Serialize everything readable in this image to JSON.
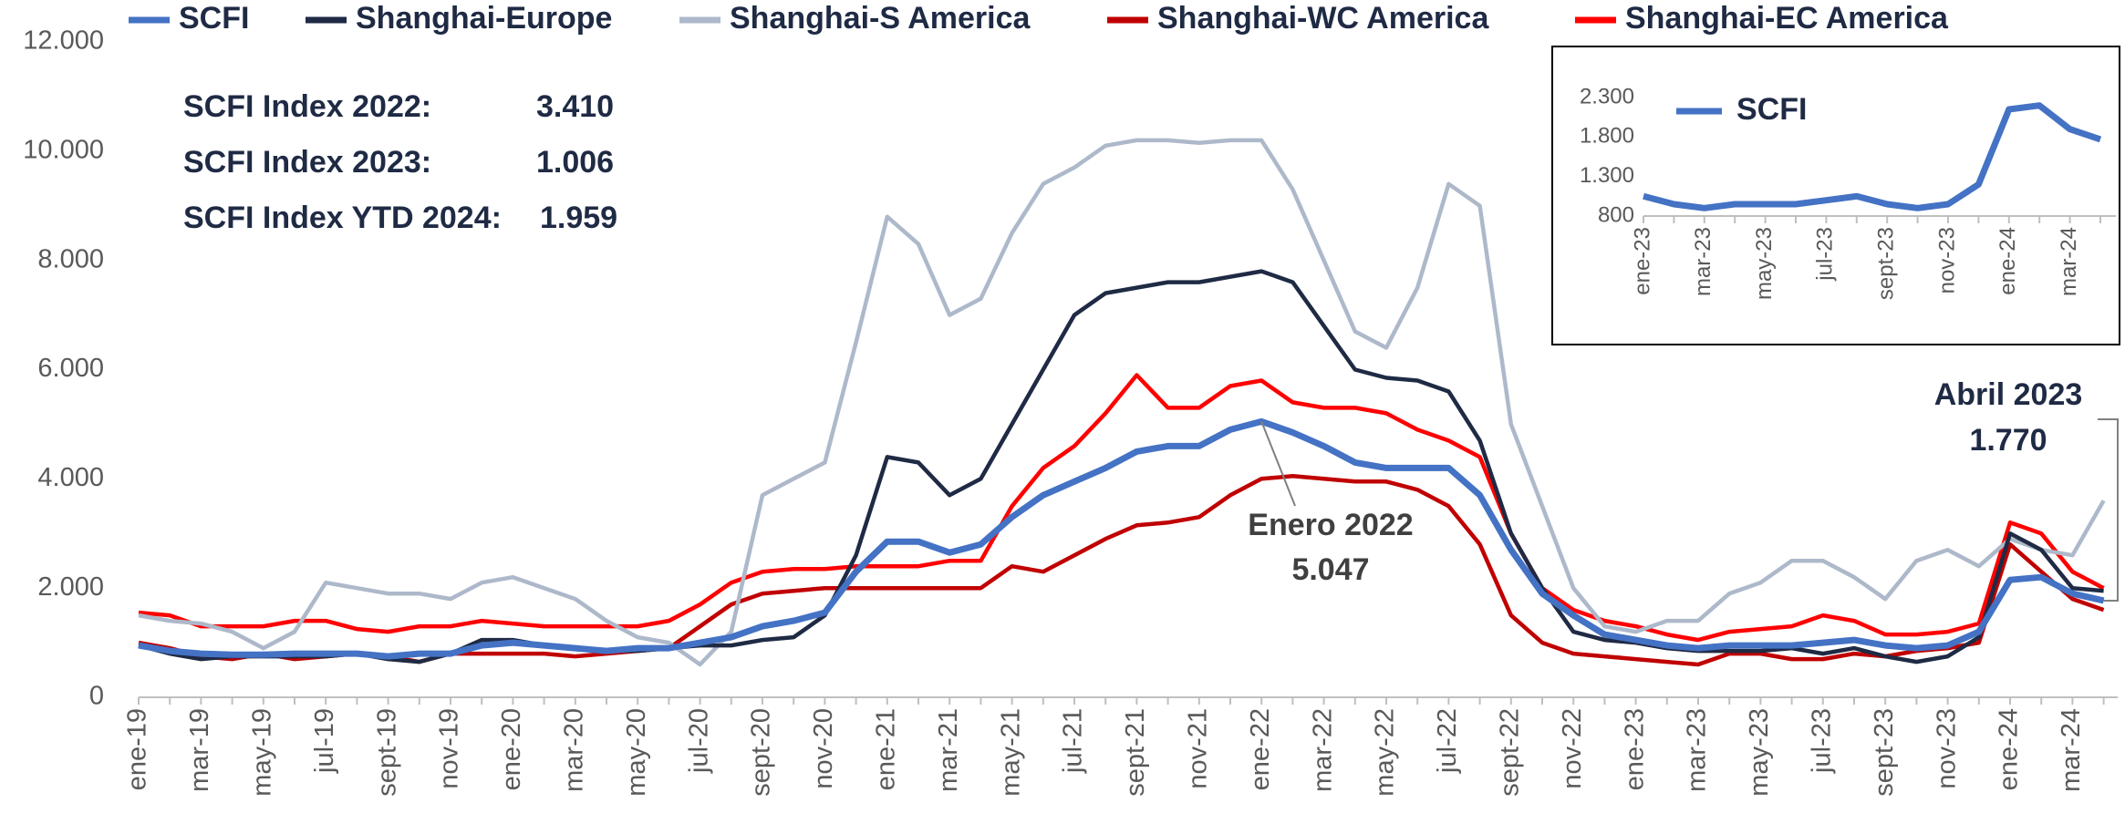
{
  "chart_data": [
    {
      "type": "line",
      "categories": [
        "ene-19",
        null,
        "mar-19",
        null,
        "may-19",
        null,
        "jul-19",
        null,
        "sept-19",
        null,
        "nov-19",
        null,
        "ene-20",
        null,
        "mar-20",
        null,
        "may-20",
        null,
        "jul-20",
        null,
        "sept-20",
        null,
        "nov-20",
        null,
        "ene-21",
        null,
        "mar-21",
        null,
        "may-21",
        null,
        "jul-21",
        null,
        "sept-21",
        null,
        "nov-21",
        null,
        "ene-22",
        null,
        "mar-22",
        null,
        "may-22",
        null,
        "jul-22",
        null,
        "sept-22",
        null,
        "nov-22",
        null,
        "ene-23",
        null,
        "mar-23",
        null,
        "may-23",
        null,
        "jul-23",
        null,
        "sept-23",
        null,
        "nov-23",
        null,
        "ene-24",
        null,
        "mar-24",
        null
      ],
      "series": [
        {
          "name": "SCFI",
          "color": "#4472c4",
          "values": [
            950,
            850,
            800,
            780,
            780,
            800,
            800,
            800,
            750,
            800,
            800,
            950,
            1000,
            950,
            900,
            850,
            900,
            900,
            1000,
            1100,
            1300,
            1400,
            1550,
            2300,
            2850,
            2850,
            2650,
            2800,
            3300,
            3700,
            3950,
            4200,
            4500,
            4600,
            4600,
            4900,
            5050,
            4850,
            4600,
            4300,
            4200,
            4200,
            4200,
            3700,
            2700,
            1900,
            1500,
            1150,
            1050,
            950,
            900,
            950,
            950,
            950,
            1000,
            1050,
            950,
            900,
            950,
            1200,
            2150,
            2200,
            1900,
            1770
          ]
        },
        {
          "name": "Shanghai-Europe",
          "color": "#1f2a44",
          "values": [
            950,
            800,
            700,
            750,
            750,
            750,
            750,
            800,
            700,
            650,
            800,
            1050,
            1050,
            950,
            900,
            850,
            850,
            900,
            950,
            950,
            1050,
            1100,
            1500,
            2600,
            4400,
            4300,
            3700,
            4000,
            5000,
            6000,
            7000,
            7400,
            7500,
            7600,
            7600,
            7700,
            7800,
            7600,
            6800,
            6000,
            5850,
            5800,
            5600,
            4700,
            3000,
            2000,
            1200,
            1050,
            1000,
            900,
            850,
            850,
            850,
            900,
            800,
            900,
            750,
            650,
            750,
            1100,
            3000,
            2700,
            2000,
            1950
          ]
        },
        {
          "name": "Shanghai-S America",
          "color": "#adb9ca",
          "values": [
            1500,
            1400,
            1350,
            1200,
            900,
            1200,
            2100,
            2000,
            1900,
            1900,
            1800,
            2100,
            2200,
            2000,
            1800,
            1400,
            1100,
            1000,
            600,
            1200,
            3700,
            4000,
            4300,
            6500,
            8800,
            8300,
            7000,
            7300,
            8500,
            9400,
            9700,
            10100,
            10200,
            10200,
            10150,
            10200,
            10200,
            9300,
            8000,
            6700,
            6400,
            7500,
            9400,
            9000,
            5000,
            3500,
            2000,
            1300,
            1200,
            1400,
            1400,
            1900,
            2100,
            2500,
            2500,
            2200,
            1800,
            2500,
            2700,
            2400,
            2900,
            2700,
            2600,
            3600
          ]
        },
        {
          "name": "Shanghai-WC America",
          "color": "#c00000",
          "values": [
            1000,
            900,
            750,
            700,
            800,
            700,
            750,
            800,
            750,
            650,
            800,
            800,
            800,
            800,
            750,
            800,
            850,
            900,
            1300,
            1700,
            1900,
            1950,
            2000,
            2000,
            2000,
            2000,
            2000,
            2000,
            2400,
            2300,
            2600,
            2900,
            3150,
            3200,
            3300,
            3700,
            4000,
            4050,
            4000,
            3950,
            3950,
            3800,
            3500,
            2800,
            1500,
            1000,
            800,
            750,
            700,
            650,
            600,
            800,
            800,
            700,
            700,
            800,
            750,
            850,
            900,
            1000,
            2800,
            2300,
            1800,
            1600
          ]
        },
        {
          "name": "Shanghai-EC America",
          "color": "#ff0000",
          "values": [
            1550,
            1500,
            1300,
            1300,
            1300,
            1400,
            1400,
            1250,
            1200,
            1300,
            1300,
            1400,
            1350,
            1300,
            1300,
            1300,
            1300,
            1400,
            1700,
            2100,
            2300,
            2350,
            2350,
            2400,
            2400,
            2400,
            2500,
            2500,
            3500,
            4200,
            4600,
            5200,
            5900,
            5300,
            5300,
            5700,
            5800,
            5400,
            5300,
            5300,
            5200,
            4900,
            4700,
            4400,
            3000,
            2000,
            1600,
            1400,
            1300,
            1150,
            1050,
            1200,
            1250,
            1300,
            1500,
            1400,
            1150,
            1150,
            1200,
            1350,
            3200,
            3000,
            2300,
            2000
          ]
        }
      ],
      "ylim": [
        0,
        12000
      ],
      "yticks": [
        0,
        {
          "value": 2000,
          "label": "2.000"
        },
        {
          "value": 4000,
          "label": "4.000"
        },
        {
          "value": 6000,
          "label": "6.000"
        },
        {
          "value": 8000,
          "label": "8.000"
        },
        {
          "value": 10000,
          "label": "10.000"
        },
        {
          "value": 12000,
          "label": "12.000"
        }
      ],
      "legend": "top",
      "stats": [
        {
          "name": "SCFI Index 2022:",
          "text": "3.410"
        },
        {
          "name": "SCFI Index 2023:",
          "text": "1.006"
        },
        {
          "name": "SCFI Index YTD 2024:",
          "text": "1.959"
        }
      ],
      "annotations": [
        {
          "text": "Enero 2022",
          "label": "5.047"
        },
        {
          "text": "Abril 2023",
          "label": "1.770"
        }
      ]
    },
    {
      "type": "line",
      "categories": [
        "ene-23",
        null,
        "mar-23",
        null,
        "may-23",
        null,
        "jul-23",
        null,
        "sept-23",
        null,
        "nov-23",
        null,
        "ene-24",
        null,
        "mar-24",
        null
      ],
      "series": [
        {
          "name": "SCFI",
          "color": "#4472c4",
          "values": [
            1050,
            950,
            900,
            950,
            950,
            950,
            1000,
            1050,
            950,
            900,
            950,
            1200,
            2150,
            2200,
            1900,
            1770
          ]
        }
      ],
      "ylim": [
        800,
        2300
      ],
      "yticks": [
        800,
        {
          "value": 1300,
          "label": "1.300"
        },
        {
          "value": 1800,
          "label": "1.800"
        },
        {
          "value": 2300,
          "label": "2.300"
        }
      ]
    }
  ]
}
